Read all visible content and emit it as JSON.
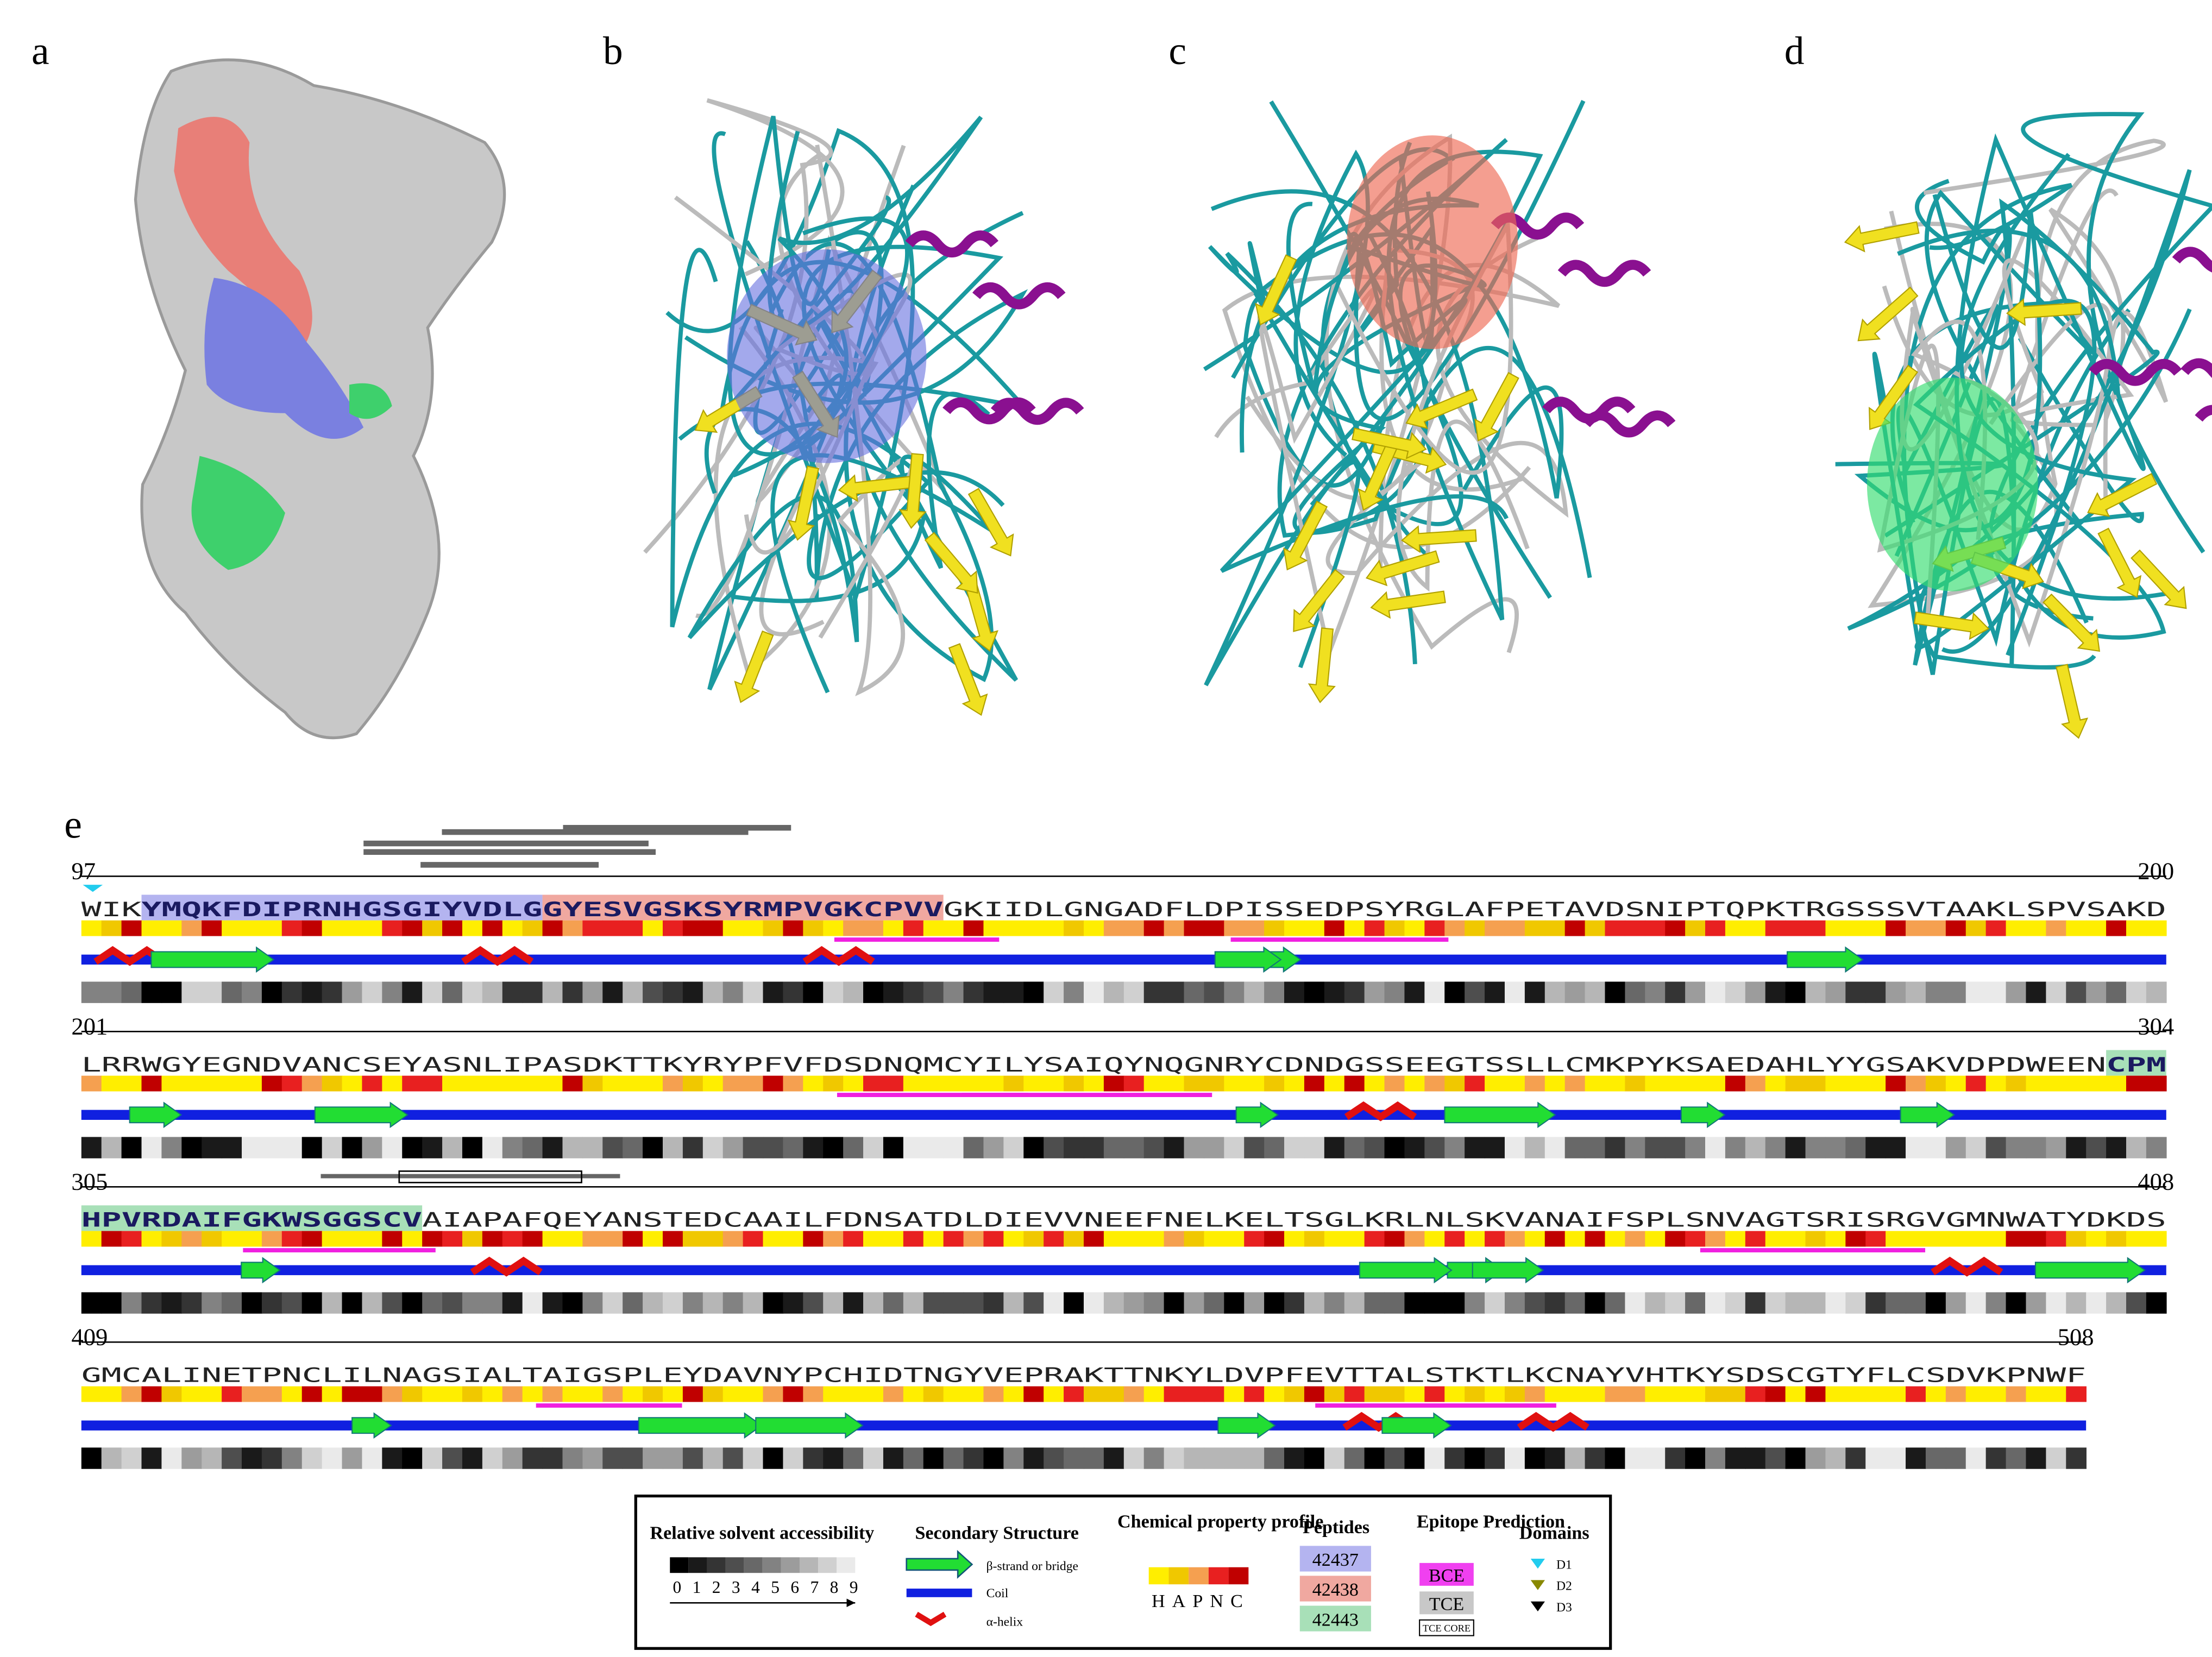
{
  "panels": {
    "a": "a",
    "b": "b",
    "c": "c",
    "d": "d",
    "e": "e"
  },
  "rows": [
    {
      "start": "97",
      "end": "200",
      "segments": [
        {
          "text": "WIK"
        },
        {
          "text": "YMQKFDIPRNHGSGIYVDLG",
          "color": "#b4b4f0"
        },
        {
          "text": "GYESVGSKSYRMPVGKCPVV",
          "color": "#f0a8a0"
        },
        {
          "text": "GKIIDLGNGADFLDPISSEDPSYRGLAFPETAVDSNIPTQPKTRGSSSVTAAKLSPVSAKD"
        }
      ]
    },
    {
      "start": "201",
      "end": "304",
      "segments": [
        {
          "text": "LRRWGYEGNDVANCSEYASNLIPASDKTTKYRYPFVFDSDNQMCYILYSAIQYNQGNRYCDNDGSSEEGTSSLLCMKPYKSAEDAHLYYGSAKVDPDWEEN"
        },
        {
          "text": "CPM",
          "color": "#a8e0b8"
        }
      ]
    },
    {
      "start": "305",
      "end": "408",
      "segments": [
        {
          "text": "HPVRDAIFGKWSGGSCV",
          "color": "#a8e0b8"
        },
        {
          "text": "AIAPAFQEYANSTEDCAAILFDNSATDLDIEVVNEEFNELKELTSGLKRLNLSKVANAIFSPLSNVAGTSRISRGVGMNWATYDKDS"
        }
      ]
    },
    {
      "start": "409",
      "end": "508",
      "segments": [
        {
          "text": "GMCALINETPNCLILNAGSIALTAIGSPLEYDAVNYPCHIDTNGYVEPRAKTTNKYLDVPFEVTTALSTKTLKCNAYVHTKYSDSCGTYFLCSDVKPNWF"
        }
      ]
    }
  ],
  "legend": {
    "rsa": {
      "title": "Relative solvent accessibility",
      "scale": "0 1 2 3 4 5 6 7 8 9"
    },
    "ss": {
      "title": "Secondary Structure",
      "strand": "β-strand or bridge",
      "coil": "Coil",
      "helix": "α-helix"
    },
    "chem": {
      "title": "Chemical property profile",
      "scale": "HAPNC"
    },
    "peptides": {
      "title": "Peptides",
      "items": [
        {
          "name": "42437",
          "color": "#b4b4f0"
        },
        {
          "name": "42438",
          "color": "#f0a8a0"
        },
        {
          "name": "42443",
          "color": "#a8e0b8"
        }
      ]
    },
    "epitope": {
      "title": "Epitope Prediction",
      "bce": "BCE",
      "tce": "TCE",
      "core": "TCE CORE"
    },
    "domains": {
      "title": "Domains",
      "d1": "D1",
      "d2": "D2",
      "d3": "D3"
    }
  }
}
